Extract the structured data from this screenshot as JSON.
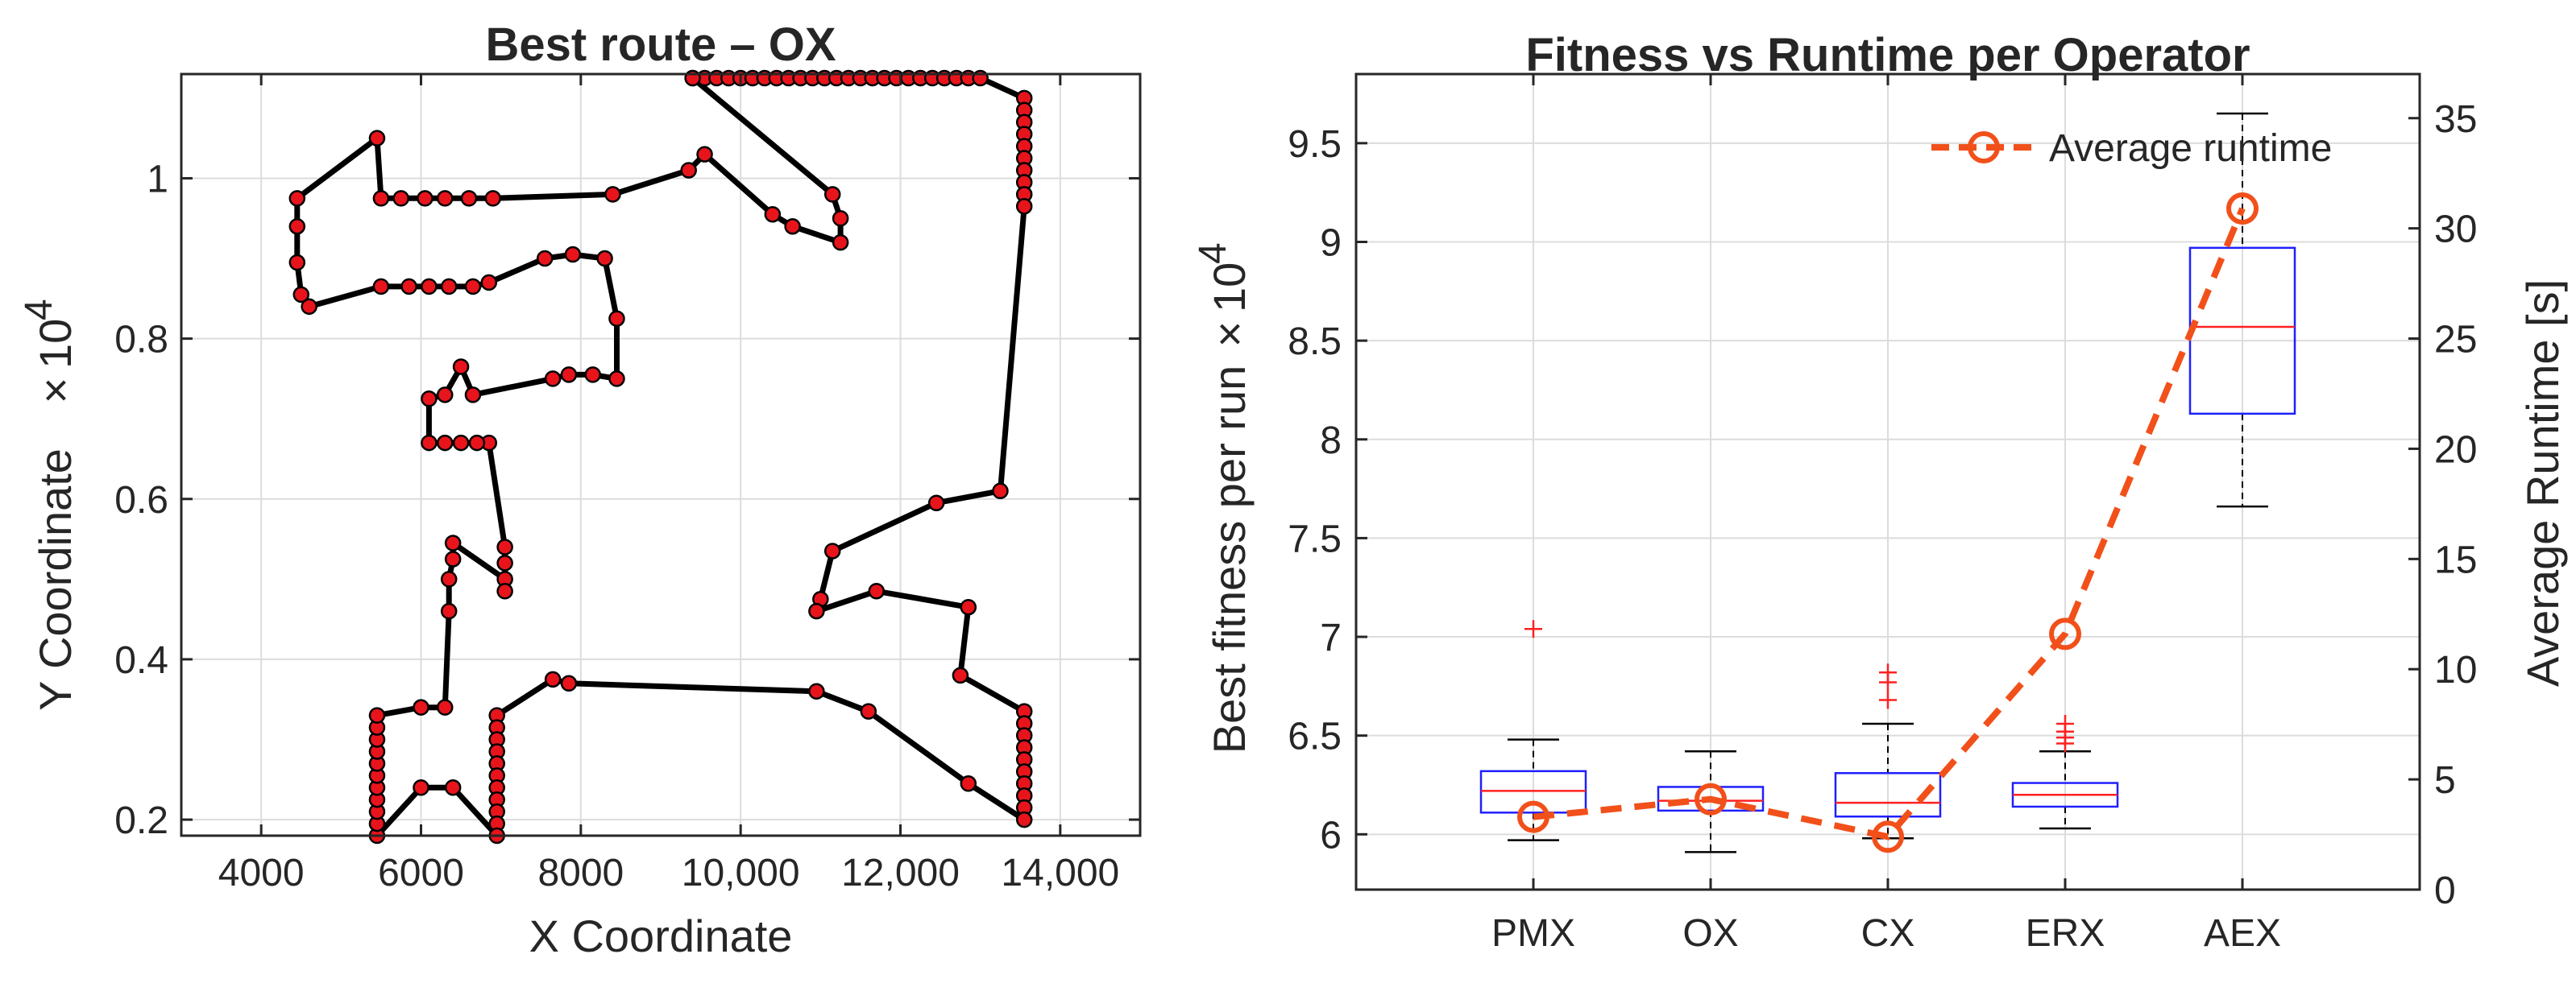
{
  "chart_data": [
    {
      "type": "line",
      "title": "Best route – OX",
      "xlabel": "X Coordinate",
      "ylabel": "Y Coordinate",
      "y_exponent": "10",
      "y_exponent_power": "4",
      "xlim": [
        3000,
        15000
      ],
      "ylim": [
        1800,
        11300
      ],
      "xticks": [
        4000,
        6000,
        8000,
        10000,
        12000,
        14000
      ],
      "xtick_labels": [
        "4000",
        "6000",
        "8000",
        "10,000",
        "12,000",
        "14,000"
      ],
      "yticks": [
        2000,
        4000,
        6000,
        8000,
        10000
      ],
      "ytick_labels": [
        "0.2",
        "0.4",
        "0.6",
        "0.8",
        "1"
      ],
      "grid": true,
      "line_color": "#000000",
      "marker_color": "#e8141c",
      "route": [
        [
          9400,
          11250
        ],
        [
          9550,
          11250
        ],
        [
          9700,
          11250
        ],
        [
          9850,
          11250
        ],
        [
          10000,
          11250
        ],
        [
          10150,
          11250
        ],
        [
          10300,
          11250
        ],
        [
          10450,
          11250
        ],
        [
          10600,
          11250
        ],
        [
          10750,
          11250
        ],
        [
          10900,
          11250
        ],
        [
          11050,
          11250
        ],
        [
          11200,
          11250
        ],
        [
          11350,
          11250
        ],
        [
          11500,
          11250
        ],
        [
          11650,
          11250
        ],
        [
          11800,
          11250
        ],
        [
          11950,
          11250
        ],
        [
          12100,
          11250
        ],
        [
          12250,
          11250
        ],
        [
          12400,
          11250
        ],
        [
          12550,
          11250
        ],
        [
          12700,
          11250
        ],
        [
          12850,
          11250
        ],
        [
          13000,
          11250
        ],
        [
          13550,
          11000
        ],
        [
          13550,
          10850
        ],
        [
          13550,
          10700
        ],
        [
          13550,
          10550
        ],
        [
          13550,
          10400
        ],
        [
          13550,
          10250
        ],
        [
          13550,
          10100
        ],
        [
          13550,
          9950
        ],
        [
          13550,
          9800
        ],
        [
          13550,
          9650
        ],
        [
          13250,
          6100
        ],
        [
          12450,
          5950
        ],
        [
          11150,
          5350
        ],
        [
          11000,
          4750
        ],
        [
          10950,
          4600
        ],
        [
          11700,
          4850
        ],
        [
          12850,
          4650
        ],
        [
          12750,
          3800
        ],
        [
          13550,
          3350
        ],
        [
          13550,
          3200
        ],
        [
          13550,
          3050
        ],
        [
          13550,
          2900
        ],
        [
          13550,
          2750
        ],
        [
          13550,
          2600
        ],
        [
          13550,
          2450
        ],
        [
          13550,
          2300
        ],
        [
          13550,
          2150
        ],
        [
          13550,
          2000
        ],
        [
          12850,
          2450
        ],
        [
          11600,
          3350
        ],
        [
          10950,
          3600
        ],
        [
          7850,
          3700
        ],
        [
          7650,
          3750
        ],
        [
          6950,
          3300
        ],
        [
          6950,
          3150
        ],
        [
          6950,
          3000
        ],
        [
          6950,
          2850
        ],
        [
          6950,
          2700
        ],
        [
          6950,
          2550
        ],
        [
          6950,
          2400
        ],
        [
          6950,
          2250
        ],
        [
          6950,
          2100
        ],
        [
          6950,
          1950
        ],
        [
          6950,
          1800
        ],
        [
          6400,
          2400
        ],
        [
          6000,
          2400
        ],
        [
          5450,
          1800
        ],
        [
          5450,
          1950
        ],
        [
          5450,
          2100
        ],
        [
          5450,
          2250
        ],
        [
          5450,
          2400
        ],
        [
          5450,
          2550
        ],
        [
          5450,
          2700
        ],
        [
          5450,
          2850
        ],
        [
          5450,
          3000
        ],
        [
          5450,
          3150
        ],
        [
          5450,
          3300
        ],
        [
          6000,
          3400
        ],
        [
          6300,
          3400
        ],
        [
          6350,
          4600
        ],
        [
          6350,
          5000
        ],
        [
          6400,
          5250
        ],
        [
          6400,
          5450
        ],
        [
          7050,
          5000
        ],
        [
          7050,
          4850
        ],
        [
          7050,
          5200
        ],
        [
          7050,
          5400
        ],
        [
          6850,
          6700
        ],
        [
          6700,
          6700
        ],
        [
          6500,
          6700
        ],
        [
          6300,
          6700
        ],
        [
          6100,
          6700
        ],
        [
          6100,
          7250
        ],
        [
          6300,
          7300
        ],
        [
          6500,
          7650
        ],
        [
          6650,
          7300
        ],
        [
          7650,
          7500
        ],
        [
          7850,
          7550
        ],
        [
          8150,
          7550
        ],
        [
          8450,
          7500
        ],
        [
          8450,
          8250
        ],
        [
          8300,
          9000
        ],
        [
          7900,
          9050
        ],
        [
          7550,
          9000
        ],
        [
          6850,
          8700
        ],
        [
          6650,
          8650
        ],
        [
          6350,
          8650
        ],
        [
          6100,
          8650
        ],
        [
          5850,
          8650
        ],
        [
          5500,
          8650
        ],
        [
          4600,
          8400
        ],
        [
          4500,
          8550
        ],
        [
          4450,
          8950
        ],
        [
          4450,
          9400
        ],
        [
          4450,
          9750
        ],
        [
          5450,
          10500
        ],
        [
          5500,
          9750
        ],
        [
          5750,
          9750
        ],
        [
          6050,
          9750
        ],
        [
          6300,
          9750
        ],
        [
          6600,
          9750
        ],
        [
          6900,
          9750
        ],
        [
          8400,
          9800
        ],
        [
          9350,
          10100
        ],
        [
          9550,
          10300
        ],
        [
          10400,
          9550
        ],
        [
          10650,
          9400
        ],
        [
          11250,
          9200
        ],
        [
          11250,
          9500
        ],
        [
          11150,
          9800
        ],
        [
          9400,
          11250
        ]
      ]
    },
    {
      "type": "box",
      "title": "Fitness vs Runtime per Operator",
      "ylabel": "Best fitness per run",
      "y_exponent": "10",
      "y_exponent_power": "4",
      "y2label": "Average Runtime [s]",
      "categories": [
        "PMX",
        "OX",
        "CX",
        "ERX",
        "AEX"
      ],
      "ylim": [
        5.72,
        9.85
      ],
      "yticks": [
        6,
        6.5,
        7,
        7.5,
        8,
        8.5,
        9,
        9.5
      ],
      "ytick_labels": [
        "6",
        "6.5",
        "7",
        "7.5",
        "8",
        "8.5",
        "9",
        "9.5"
      ],
      "y2lim": [
        0,
        37
      ],
      "y2ticks": [
        0,
        5,
        10,
        15,
        20,
        25,
        30,
        35
      ],
      "y2tick_labels": [
        "0",
        "5",
        "10",
        "15",
        "20",
        "25",
        "30",
        "35"
      ],
      "grid": true,
      "box_color": "#1f1fff",
      "median_color": "#ff2020",
      "outlier_color": "#ff2020",
      "boxes": [
        {
          "whisker_low": 5.97,
          "q1": 6.11,
          "median": 6.22,
          "q3": 6.32,
          "whisker_high": 6.48,
          "outliers": [
            7.04
          ]
        },
        {
          "whisker_low": 5.91,
          "q1": 6.12,
          "median": 6.17,
          "q3": 6.24,
          "whisker_high": 6.42,
          "outliers": []
        },
        {
          "whisker_low": 5.98,
          "q1": 6.09,
          "median": 6.16,
          "q3": 6.31,
          "whisker_high": 6.56,
          "outliers": [
            6.68,
            6.77,
            6.82
          ]
        },
        {
          "whisker_low": 6.03,
          "q1": 6.14,
          "median": 6.2,
          "q3": 6.26,
          "whisker_high": 6.42,
          "outliers": [
            6.46,
            6.49,
            6.52,
            6.56
          ]
        },
        {
          "whisker_low": 7.66,
          "q1": 8.13,
          "median": 8.57,
          "q3": 8.97,
          "whisker_high": 9.65,
          "outliers": []
        }
      ],
      "runtime_series": {
        "name": "Average runtime",
        "color": "#f2501a",
        "values": [
          3.3,
          4.1,
          2.4,
          11.6,
          30.9
        ]
      },
      "legend_position": "top-right"
    }
  ]
}
